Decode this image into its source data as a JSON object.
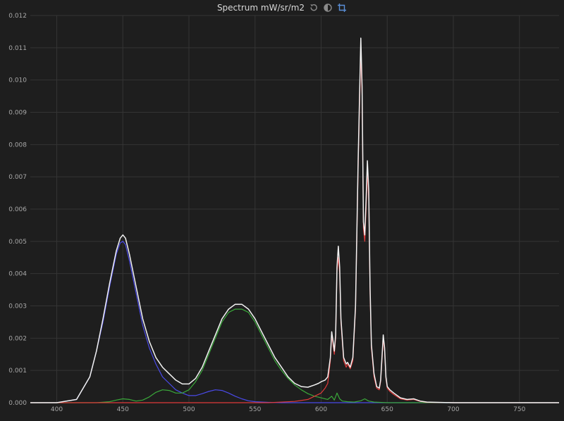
{
  "header": {
    "title": "Spectrum mW/sr/m2",
    "icons": [
      "reset-icon",
      "contrast-icon",
      "crop-icon"
    ]
  },
  "colors": {
    "background": "#1e1e1e",
    "grid": "#343434",
    "total": "#f2f2f2",
    "red": "#e03a3a",
    "green": "#3aa83a",
    "blue": "#4a4ae8",
    "crop_active": "#5a8fd8"
  },
  "chart_data": {
    "type": "line",
    "title": "Spectrum mW/sr/m2",
    "xlabel": "",
    "ylabel": "",
    "xlim": [
      380,
      780
    ],
    "ylim": [
      0,
      0.012
    ],
    "x_ticks": [
      "400",
      "450",
      "500",
      "550",
      "600",
      "650",
      "700",
      "750"
    ],
    "y_ticks": [
      "0.000",
      "0.001",
      "0.002",
      "0.003",
      "0.004",
      "0.005",
      "0.006",
      "0.007",
      "0.008",
      "0.009",
      "0.010",
      "0.011",
      "0.012"
    ],
    "grid": true,
    "legend": "none",
    "series": [
      {
        "key": "total",
        "x": [
          380,
          400,
          415,
          425,
          430,
          435,
          440,
          445,
          448,
          450,
          452,
          455,
          460,
          465,
          470,
          475,
          480,
          485,
          490,
          495,
          500,
          505,
          510,
          515,
          520,
          525,
          530,
          535,
          540,
          545,
          550,
          555,
          560,
          565,
          570,
          575,
          580,
          585,
          590,
          595,
          598,
          600,
          603,
          605,
          607,
          608,
          609,
          610,
          611,
          612,
          613,
          614,
          615,
          617,
          619,
          620,
          622,
          624,
          626,
          628,
          630,
          631,
          632,
          633,
          634,
          635,
          636,
          637,
          638,
          640,
          642,
          644,
          645,
          646,
          647,
          648,
          649,
          650,
          652,
          655,
          660,
          665,
          670,
          675,
          680,
          700,
          780
        ],
        "y": [
          0.0,
          0.0,
          0.0001,
          0.0008,
          0.0016,
          0.0026,
          0.0037,
          0.0047,
          0.0051,
          0.0052,
          0.0051,
          0.0046,
          0.0036,
          0.0026,
          0.0019,
          0.0014,
          0.0011,
          0.0009,
          0.0007,
          0.00058,
          0.00058,
          0.00075,
          0.0011,
          0.0016,
          0.0021,
          0.0026,
          0.0029,
          0.00305,
          0.00305,
          0.0029,
          0.0026,
          0.0022,
          0.0018,
          0.0014,
          0.0011,
          0.0008,
          0.0006,
          0.0005,
          0.00048,
          0.00055,
          0.0006,
          0.00065,
          0.0007,
          0.0008,
          0.0014,
          0.0022,
          0.0019,
          0.0016,
          0.0021,
          0.0042,
          0.00485,
          0.0042,
          0.0026,
          0.0014,
          0.0012,
          0.00125,
          0.0011,
          0.0014,
          0.003,
          0.0075,
          0.0113,
          0.0098,
          0.0056,
          0.0052,
          0.0063,
          0.0075,
          0.0066,
          0.0036,
          0.0018,
          0.0009,
          0.0005,
          0.00045,
          0.0007,
          0.0014,
          0.0021,
          0.0017,
          0.0008,
          0.0005,
          0.0004,
          0.0003,
          0.00015,
          0.0001,
          0.00012,
          5e-05,
          2e-05,
          0.0,
          0.0
        ]
      },
      {
        "key": "red",
        "x": [
          380,
          560,
          580,
          590,
          595,
          600,
          603,
          605,
          607,
          608,
          609,
          610,
          611,
          612,
          613,
          614,
          615,
          617,
          619,
          620,
          622,
          624,
          626,
          628,
          630,
          631,
          632,
          633,
          634,
          635,
          636,
          637,
          638,
          640,
          642,
          644,
          645,
          646,
          647,
          648,
          649,
          650,
          652,
          655,
          660,
          665,
          670,
          675,
          680,
          700,
          780
        ],
        "y": [
          0.0,
          0.0,
          4e-05,
          0.0001,
          0.0002,
          0.0003,
          0.00045,
          0.0006,
          0.0013,
          0.0021,
          0.0018,
          0.0015,
          0.002,
          0.0041,
          0.0045,
          0.004,
          0.0025,
          0.0013,
          0.0011,
          0.0012,
          0.00105,
          0.0013,
          0.0029,
          0.0073,
          0.0109,
          0.0095,
          0.0054,
          0.005,
          0.006,
          0.0072,
          0.0063,
          0.0034,
          0.0017,
          0.0008,
          0.00045,
          0.0004,
          0.00065,
          0.0013,
          0.002,
          0.0016,
          0.00075,
          0.00045,
          0.00035,
          0.00025,
          0.00012,
          8e-05,
          0.0001,
          4e-05,
          1e-05,
          0.0,
          0.0
        ]
      },
      {
        "key": "green",
        "x": [
          380,
          430,
          440,
          445,
          450,
          455,
          460,
          465,
          470,
          475,
          480,
          485,
          490,
          495,
          500,
          505,
          510,
          515,
          520,
          525,
          530,
          535,
          540,
          545,
          550,
          555,
          560,
          565,
          570,
          575,
          580,
          585,
          590,
          595,
          600,
          605,
          608,
          610,
          612,
          614,
          616,
          620,
          625,
          630,
          633,
          636,
          640,
          650,
          780
        ],
        "y": [
          0.0,
          0.0,
          3e-05,
          8e-05,
          0.00012,
          0.0001,
          5e-05,
          8e-05,
          0.00018,
          0.00032,
          0.0004,
          0.00038,
          0.0003,
          0.0003,
          0.0004,
          0.00065,
          0.001,
          0.0015,
          0.002,
          0.0025,
          0.0028,
          0.0029,
          0.0029,
          0.0028,
          0.0025,
          0.0021,
          0.0017,
          0.0013,
          0.001,
          0.00075,
          0.00055,
          0.0004,
          0.00028,
          0.0002,
          0.00015,
          0.0001,
          0.0002,
          8e-05,
          0.0003,
          0.00012,
          5e-05,
          3e-05,
          2e-05,
          6e-05,
          0.00012,
          5e-05,
          2e-05,
          0.0,
          0.0
        ]
      },
      {
        "key": "blue",
        "x": [
          380,
          400,
          415,
          425,
          430,
          435,
          440,
          445,
          448,
          450,
          452,
          455,
          460,
          465,
          470,
          475,
          480,
          485,
          490,
          495,
          500,
          505,
          510,
          515,
          520,
          525,
          530,
          535,
          540,
          545,
          550,
          560,
          570,
          600,
          780
        ],
        "y": [
          0.0,
          0.0,
          0.0001,
          0.0008,
          0.0016,
          0.0025,
          0.0036,
          0.0046,
          0.00495,
          0.005,
          0.0049,
          0.0044,
          0.0034,
          0.0024,
          0.0017,
          0.0012,
          0.0008,
          0.0006,
          0.0004,
          0.0003,
          0.00022,
          0.00022,
          0.00028,
          0.00035,
          0.0004,
          0.00038,
          0.0003,
          0.0002,
          0.00012,
          6e-05,
          3e-05,
          1e-05,
          0.0,
          0.0,
          0.0
        ]
      }
    ]
  }
}
